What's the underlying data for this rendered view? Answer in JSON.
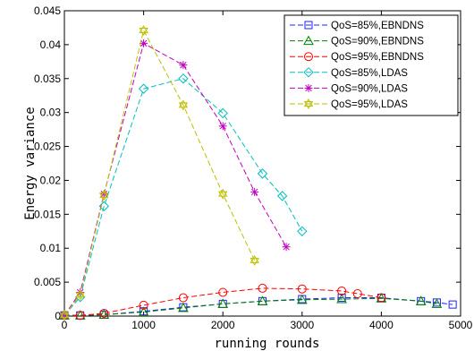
{
  "chart_data": {
    "type": "line",
    "xlabel": "running rounds",
    "ylabel": "Energy variance",
    "xlim": [
      0,
      5000
    ],
    "ylim": [
      0,
      0.045
    ],
    "xticks": [
      0,
      1000,
      2000,
      3000,
      4000,
      5000
    ],
    "yticks": [
      0,
      0.005,
      0.01,
      0.015,
      0.02,
      0.025,
      0.03,
      0.035,
      0.04,
      0.045
    ],
    "xtick_labels": [
      "0",
      "1000",
      "2000",
      "3000",
      "4000",
      "5000"
    ],
    "ytick_labels": [
      "0",
      "0.005",
      "0.01",
      "0.015",
      "0.02",
      "0.025",
      "0.03",
      "0.035",
      "0.04",
      "0.045"
    ],
    "grid": false,
    "legend_position": "top-right",
    "series": [
      {
        "name": "QoS=85%,EBNDNS",
        "color": "#1f1fff",
        "marker": "square",
        "x": [
          0,
          200,
          500,
          1000,
          1500,
          2000,
          2500,
          3000,
          3500,
          4000,
          4500,
          4700,
          4900
        ],
        "y": [
          0.0001,
          0.0001,
          0.0002,
          0.0007,
          0.0013,
          0.0018,
          0.0022,
          0.0025,
          0.0027,
          0.0027,
          0.0022,
          0.002,
          0.0017
        ]
      },
      {
        "name": "QoS=90%,EBNDNS",
        "color": "#008000",
        "marker": "triangle",
        "x": [
          0,
          200,
          500,
          1000,
          1500,
          2000,
          2500,
          3000,
          3500,
          4000,
          4500,
          4700
        ],
        "y": [
          0.0001,
          0.0001,
          0.0002,
          0.0006,
          0.0012,
          0.0018,
          0.0022,
          0.0024,
          0.0025,
          0.0026,
          0.0022,
          0.0018
        ]
      },
      {
        "name": "QoS=95%,EBNDNS",
        "color": "#ff0000",
        "marker": "circle",
        "x": [
          0,
          200,
          500,
          1000,
          1500,
          2000,
          2500,
          3000,
          3500,
          3700,
          4000
        ],
        "y": [
          0.0001,
          0.0001,
          0.0004,
          0.0016,
          0.0027,
          0.0035,
          0.0041,
          0.004,
          0.0037,
          0.0033,
          0.0027
        ]
      },
      {
        "name": "QoS=85%,LDAS",
        "color": "#00bfbf",
        "marker": "diamond",
        "x": [
          0,
          200,
          500,
          1000,
          1500,
          2000,
          2500,
          2750,
          3000
        ],
        "y": [
          0.0001,
          0.0028,
          0.0162,
          0.0335,
          0.035,
          0.0299,
          0.021,
          0.0177,
          0.0125
        ]
      },
      {
        "name": "QoS=90%,LDAS",
        "color": "#bf00bf",
        "marker": "star",
        "x": [
          0,
          200,
          500,
          1000,
          1500,
          2000,
          2400,
          2800
        ],
        "y": [
          0.0001,
          0.0035,
          0.018,
          0.0402,
          0.037,
          0.028,
          0.0183,
          0.0102
        ]
      },
      {
        "name": "QoS=95%,LDAS",
        "color": "#bfbf00",
        "marker": "hexagram",
        "x": [
          0,
          200,
          500,
          1000,
          1500,
          2000,
          2400
        ],
        "y": [
          0.0001,
          0.0031,
          0.0178,
          0.0421,
          0.0311,
          0.018,
          0.0082
        ]
      }
    ]
  }
}
